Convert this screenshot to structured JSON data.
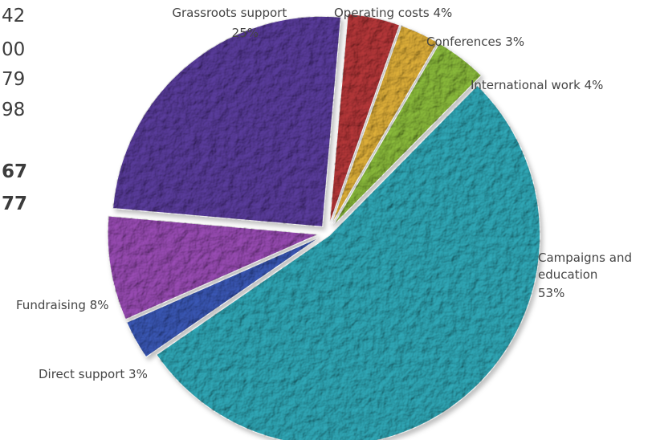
{
  "left_column": {
    "numbers": [
      {
        "text": "42",
        "bold": false
      },
      {
        "text": "00",
        "bold": false
      },
      {
        "text": "79",
        "bold": false
      },
      {
        "text": "98",
        "bold": false
      },
      {
        "text": "67",
        "bold": true
      },
      {
        "text": "77",
        "bold": true
      }
    ]
  },
  "chart_data": {
    "type": "pie",
    "slices": [
      {
        "label": "Operating costs 4%",
        "value": 4,
        "color": "#b8383a"
      },
      {
        "label": "Conferences 3%",
        "value": 3,
        "color": "#e2b23a"
      },
      {
        "label": "International work 4%",
        "value": 4,
        "color": "#8cbd3c"
      },
      {
        "label": "Campaigns and education 53%",
        "value": 53,
        "color": "#31aab9"
      },
      {
        "label": "Direct support 3%",
        "value": 3,
        "color": "#3b59b8"
      },
      {
        "label": "Fundraising 8%",
        "value": 8,
        "color": "#9a4cb5"
      },
      {
        "label": "Grassroots support 25%",
        "value": 25,
        "color": "#5b3d9e"
      }
    ]
  }
}
